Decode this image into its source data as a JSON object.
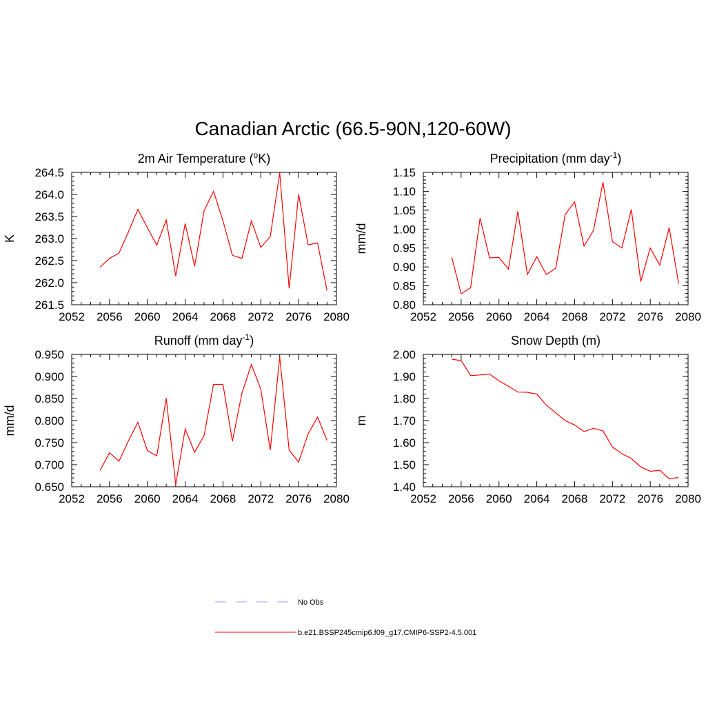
{
  "title": "Canadian Arctic (66.5-90N,120-60W)",
  "colors": {
    "model": "#ff0000",
    "obs": "#b0b0ff"
  },
  "legend": {
    "obs_label": "No Obs",
    "model_label": "b.e21.BSSP245cmip6.f09_g17.CMIP6-SSP2-4.5.001"
  },
  "chart_data": [
    {
      "type": "line",
      "title": "2m Air Temperature (",
      "title_sup": "o",
      "title_tail": "K)",
      "ylabel": "K",
      "xlim": [
        2052,
        2080
      ],
      "ylim": [
        261.5,
        264.5
      ],
      "xticks": [
        "2052",
        "2056",
        "2060",
        "2064",
        "2068",
        "2072",
        "2076",
        "2080"
      ],
      "yticks": [
        "261.5",
        "262.0",
        "262.5",
        "263.0",
        "263.5",
        "264.0",
        "264.5"
      ],
      "x": [
        2055,
        2056,
        2057,
        2058,
        2059,
        2060,
        2061,
        2062,
        2063,
        2064,
        2065,
        2066,
        2067,
        2068,
        2069,
        2070,
        2071,
        2072,
        2073,
        2074,
        2075,
        2076,
        2077,
        2078,
        2079
      ],
      "values": [
        262.35,
        262.55,
        262.67,
        263.15,
        263.66,
        263.25,
        262.85,
        263.42,
        262.15,
        263.34,
        262.37,
        263.63,
        264.07,
        263.4,
        262.62,
        262.55,
        263.4,
        262.8,
        263.04,
        264.49,
        261.87,
        264.0,
        262.86,
        262.9,
        261.82
      ]
    },
    {
      "type": "line",
      "title": "Precipitation (mm day",
      "title_sup": "-1",
      "title_tail": ")",
      "ylabel": "mm/d",
      "xlim": [
        2052,
        2080
      ],
      "ylim": [
        0.8,
        1.15
      ],
      "xticks": [
        "2052",
        "2056",
        "2060",
        "2064",
        "2068",
        "2072",
        "2076",
        "2080"
      ],
      "yticks": [
        "0.80",
        "0.85",
        "0.90",
        "0.95",
        "1.00",
        "1.05",
        "1.10",
        "1.15"
      ],
      "x": [
        2055,
        2056,
        2057,
        2058,
        2059,
        2060,
        2061,
        2062,
        2063,
        2064,
        2065,
        2066,
        2067,
        2068,
        2069,
        2070,
        2071,
        2072,
        2073,
        2074,
        2075,
        2076,
        2077,
        2078,
        2079
      ],
      "values": [
        0.926,
        0.829,
        0.845,
        1.029,
        0.924,
        0.925,
        0.894,
        1.047,
        0.88,
        0.927,
        0.88,
        0.896,
        1.038,
        1.072,
        0.955,
        0.997,
        1.124,
        0.967,
        0.95,
        1.052,
        0.861,
        0.95,
        0.905,
        1.004,
        0.856
      ]
    },
    {
      "type": "line",
      "title": "Runoff (mm day",
      "title_sup": "-1",
      "title_tail": ")",
      "ylabel": "mm/d",
      "xlim": [
        2052,
        2080
      ],
      "ylim": [
        0.65,
        0.95
      ],
      "xticks": [
        "2052",
        "2056",
        "2060",
        "2064",
        "2068",
        "2072",
        "2076",
        "2080"
      ],
      "yticks": [
        "0.650",
        "0.700",
        "0.750",
        "0.800",
        "0.850",
        "0.900",
        "0.950"
      ],
      "x": [
        2055,
        2056,
        2057,
        2058,
        2059,
        2060,
        2061,
        2062,
        2063,
        2064,
        2065,
        2066,
        2067,
        2068,
        2069,
        2070,
        2071,
        2072,
        2073,
        2074,
        2075,
        2076,
        2077,
        2078,
        2079
      ],
      "values": [
        0.687,
        0.727,
        0.708,
        0.754,
        0.796,
        0.732,
        0.72,
        0.851,
        0.655,
        0.781,
        0.728,
        0.766,
        0.882,
        0.882,
        0.753,
        0.862,
        0.927,
        0.871,
        0.733,
        0.944,
        0.733,
        0.706,
        0.77,
        0.808,
        0.755
      ]
    },
    {
      "type": "line",
      "title": "Snow Depth (m)",
      "title_sup": "",
      "title_tail": "",
      "ylabel": "m",
      "xlim": [
        2052,
        2080
      ],
      "ylim": [
        1.4,
        2.0
      ],
      "xticks": [
        "2052",
        "2056",
        "2060",
        "2064",
        "2068",
        "2072",
        "2076",
        "2080"
      ],
      "yticks": [
        "1.40",
        "1.50",
        "1.60",
        "1.70",
        "1.80",
        "1.90",
        "2.00"
      ],
      "x": [
        2055,
        2056,
        2057,
        2058,
        2059,
        2060,
        2061,
        2062,
        2063,
        2064,
        2065,
        2066,
        2067,
        2068,
        2069,
        2070,
        2071,
        2072,
        2073,
        2074,
        2075,
        2076,
        2077,
        2078,
        2079
      ],
      "values": [
        1.978,
        1.972,
        1.904,
        1.907,
        1.911,
        1.88,
        1.856,
        1.829,
        1.828,
        1.82,
        1.77,
        1.735,
        1.7,
        1.68,
        1.65,
        1.665,
        1.653,
        1.58,
        1.55,
        1.528,
        1.49,
        1.47,
        1.475,
        1.437,
        1.442
      ]
    }
  ]
}
